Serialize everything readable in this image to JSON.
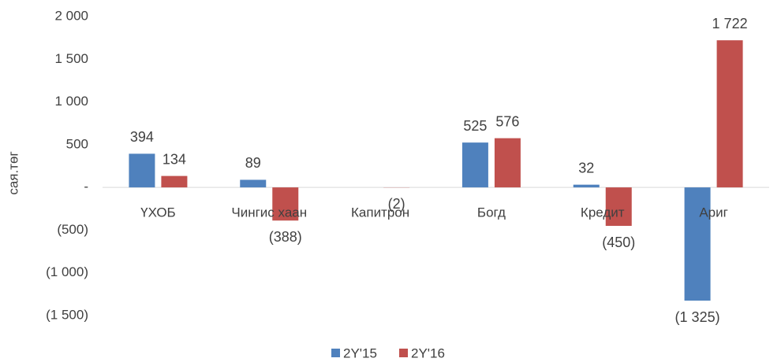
{
  "chart_data": {
    "type": "bar",
    "y_label": "сая.төг",
    "categories": [
      "ҮХОБ",
      "Чингис хаан",
      "Капитрон",
      "Богд",
      "Кредит",
      "Ариг"
    ],
    "series": [
      {
        "name": "2Y'15",
        "color": "#4f81bd",
        "values": [
          394,
          89,
          null,
          525,
          32,
          -1325
        ],
        "value_labels": [
          "394",
          "89",
          null,
          "525",
          "32",
          "(1 325)"
        ]
      },
      {
        "name": "2Y'16",
        "color": "#c0504d",
        "values": [
          134,
          -388,
          -2,
          576,
          -450,
          1722
        ],
        "value_labels": [
          "134",
          "(388)",
          "(2)",
          "576",
          "(450)",
          "1 722"
        ]
      }
    ],
    "ylim": [
      -1500,
      2000
    ],
    "yticks": [
      {
        "value": 2000,
        "label": "2 000"
      },
      {
        "value": 1500,
        "label": "1 500"
      },
      {
        "value": 1000,
        "label": "1 000"
      },
      500,
      {
        "value": 0,
        "label": "-"
      },
      {
        "value": -500,
        "label": "(500)"
      },
      {
        "value": -1000,
        "label": "(1 000)"
      },
      {
        "value": -1500,
        "label": "(1 500)"
      }
    ],
    "legend": "bottom"
  }
}
